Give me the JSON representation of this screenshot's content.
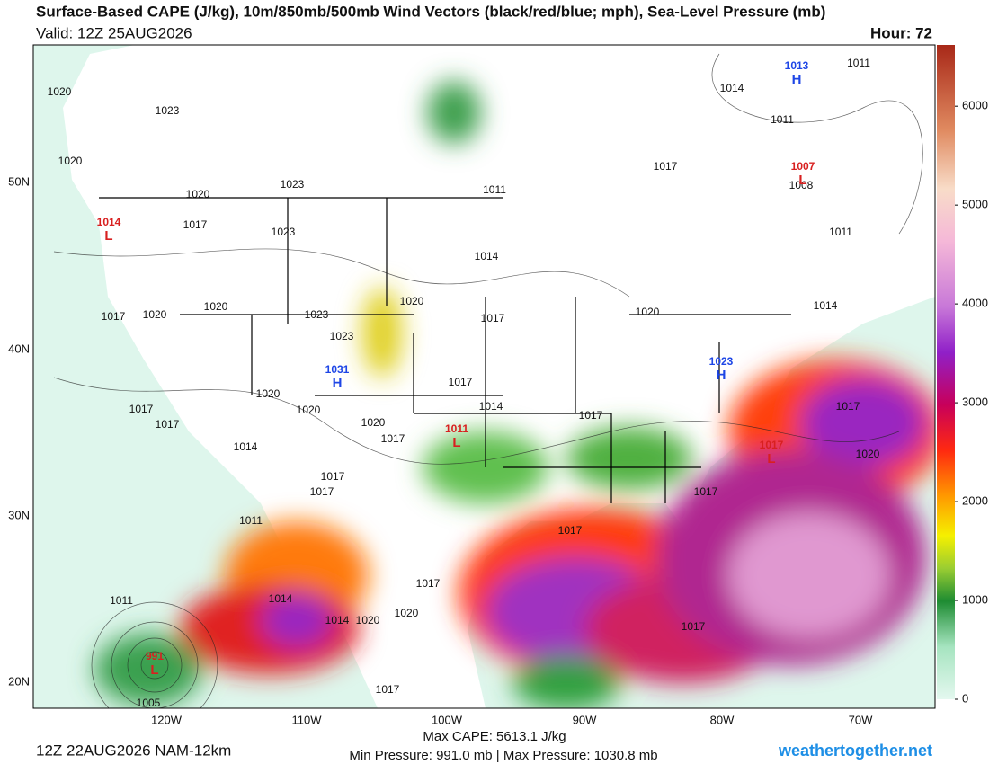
{
  "header": {
    "title": "Surface-Based CAPE (J/kg), 10m/850mb/500mb Wind Vectors (black/red/blue; mph), Sea-Level Pressure (mb)",
    "valid": "Valid: 12Z 25AUG2026",
    "hour": "Hour: 72"
  },
  "map": {
    "lat_labels": [
      "50N",
      "40N",
      "30N",
      "20N"
    ],
    "lon_labels": [
      "120W",
      "110W",
      "100W",
      "90W",
      "80W",
      "70W"
    ],
    "isobar_labels": [
      "1020",
      "1023",
      "1020",
      "1023",
      "1020",
      "1017",
      "1023",
      "1017",
      "1020",
      "1020",
      "1023",
      "1023",
      "1020",
      "1017",
      "1014",
      "1011",
      "1017",
      "1014",
      "1011",
      "1011",
      "1008",
      "1011",
      "1014",
      "1020",
      "1017",
      "1014",
      "1017",
      "1020",
      "1020",
      "1020",
      "1017",
      "1017",
      "1017",
      "1014",
      "1017",
      "1017",
      "1011",
      "1017",
      "1020",
      "1017",
      "1017",
      "1017",
      "1020",
      "1014",
      "1020",
      "1014",
      "1011",
      "1005",
      "1017",
      "1017"
    ],
    "pressure_centers": [
      {
        "value": "1013",
        "symbol": "H",
        "color": "#1e46e6"
      },
      {
        "value": "1007",
        "symbol": "L",
        "color": "#d82020"
      },
      {
        "value": "1014",
        "symbol": "L",
        "color": "#d82020"
      },
      {
        "value": "1031",
        "symbol": "H",
        "color": "#1e46e6"
      },
      {
        "value": "1011",
        "symbol": "L",
        "color": "#d82020"
      },
      {
        "value": "1023",
        "symbol": "H",
        "color": "#1e46e6"
      },
      {
        "value": "1017",
        "symbol": "L",
        "color": "#d82020"
      },
      {
        "value": "991",
        "symbol": "L",
        "color": "#d82020"
      }
    ]
  },
  "colorbar": {
    "ylim": [
      0,
      6620
    ],
    "yticks": [
      0,
      1000,
      2000,
      3000,
      4000,
      5000,
      6000
    ]
  },
  "footer": {
    "run": "12Z 22AUG2026 NAM-12km",
    "max_cape": "Max CAPE: 5613.1 J/kg",
    "pressures": "Min Pressure: 991.0 mb | Max Pressure: 1030.8 mb",
    "site": "weathertogether.net"
  }
}
